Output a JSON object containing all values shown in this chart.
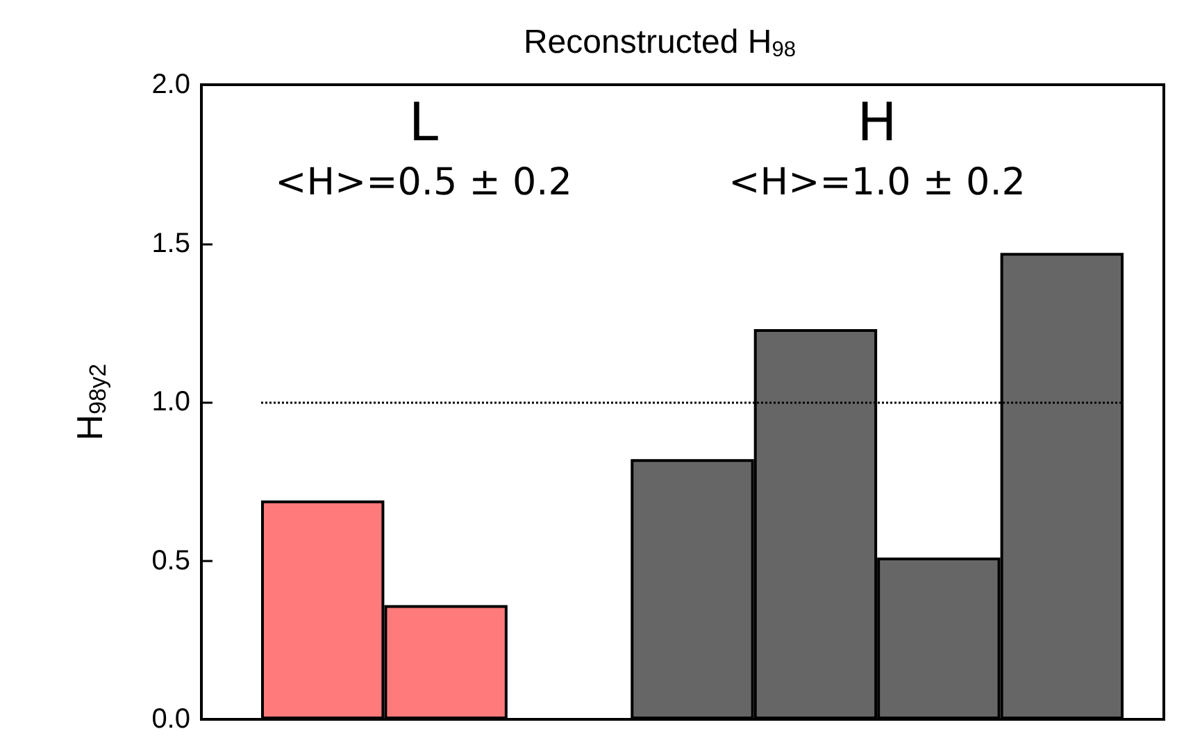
{
  "chart_data": {
    "type": "bar",
    "title": "Reconstructed H$_{98}$",
    "ylabel": "H$_{98y2}$",
    "categories": [
      null,
      null,
      null,
      null,
      null,
      null,
      null
    ],
    "series": [
      {
        "color": "#ff7b7b",
        "values": [
          0.69,
          0.36,
          null,
          null,
          null,
          null,
          null
        ]
      },
      {
        "color": "#666666",
        "values": [
          null,
          null,
          null,
          0.82,
          1.23,
          0.51,
          1.47
        ]
      }
    ],
    "annotations": [
      "L",
      "<H>=0.5 ± 0.2",
      "H",
      "<H>=1.0 ± 0.2"
    ],
    "ylim": [
      0,
      2
    ],
    "yticks": [
      {
        "value": 0,
        "label": "0.0"
      },
      {
        "value": 0.5,
        "label": "0.5"
      },
      {
        "value": 1,
        "label": "1.0"
      },
      {
        "value": 1.5,
        "label": "1.5"
      },
      {
        "value": 2,
        "label": "2.0"
      }
    ],
    "ref_lines": [
      {
        "axis": "y",
        "value": 1,
        "label": null,
        "color": "#000000",
        "line_style": "dotted"
      }
    ],
    "grid": false
  }
}
